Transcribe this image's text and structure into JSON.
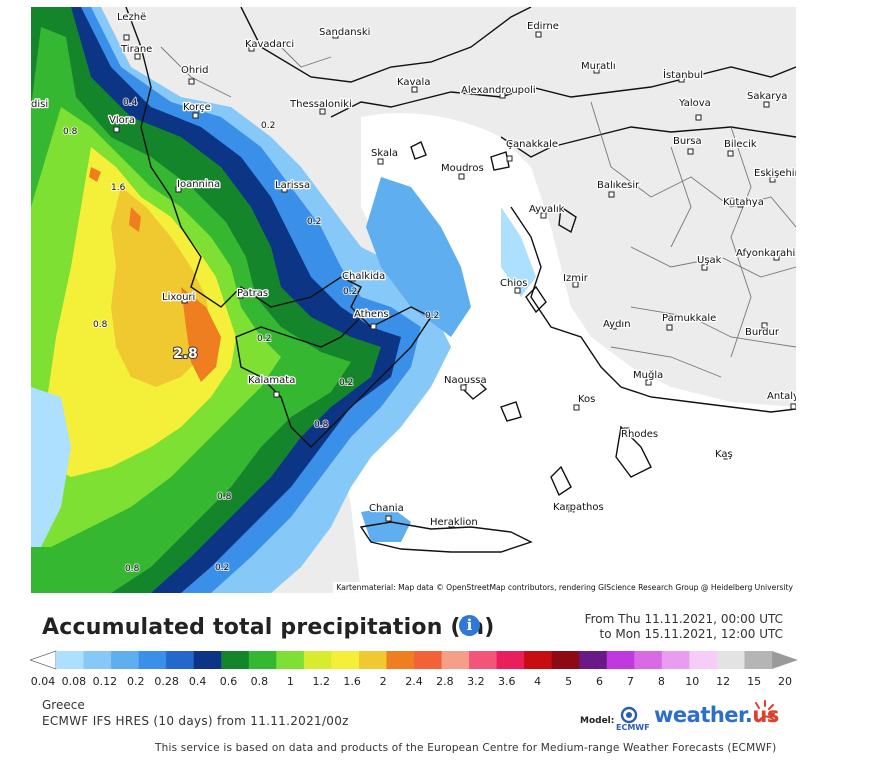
{
  "title": "Accumulated total precipitation (in)",
  "date_range": {
    "from": "From Thu 11.11.2021, 00:00 UTC",
    "to": "to Mon 15.11.2021, 12:00 UTC"
  },
  "map": {
    "attribution": "Kartenmaterial: Map data © OpenStreetMap contributors, rendering GIScience Research Group @ Heidelberg University",
    "peak_label": "2.8",
    "cities": [
      "Lezhë",
      "Tirane",
      "Ohrid",
      "Kavadarci",
      "Sandanski",
      "Edirne",
      "Muratlı",
      "İstanbul",
      "Kavala",
      "Alexandroupoli",
      "Vlora",
      "Korçe",
      "Thessaloniki",
      "Yalova",
      "Sakarya",
      "Bursa",
      "Bilecik",
      "Eskişehir",
      "Çanakkale",
      "Skala",
      "Moudros",
      "Ioannina",
      "Larissa",
      "Balıkesir",
      "Kütahya",
      "Ayvalık",
      "Chalkida",
      "Chios",
      "Izmir",
      "Uşak",
      "Afyonkarahisar",
      "Lixouri",
      "Patras",
      "Athens",
      "Aydın",
      "Pamukkale",
      "Burdur",
      "Kalamata",
      "Naoussa",
      "Muğla",
      "Kos",
      "Antalya",
      "Rhodes",
      "Kaş",
      "Chania",
      "Heraklion",
      "Karpathos",
      "disi"
    ],
    "contour_values": [
      "0.4",
      "0.8",
      "1.6",
      "0.2",
      "0.2",
      "0.2",
      "0.2",
      "0.2",
      "0.8",
      "0.8",
      "0.2",
      "0.8",
      "0.2",
      "0.8"
    ]
  },
  "legend": {
    "ticks": [
      "0.04",
      "0.08",
      "0.12",
      "0.2",
      "0.28",
      "0.4",
      "0.6",
      "0.8",
      "1",
      "1.2",
      "1.6",
      "2",
      "2.4",
      "2.8",
      "3.2",
      "3.6",
      "4",
      "5",
      "6",
      "7",
      "8",
      "10",
      "12",
      "15",
      "20"
    ],
    "colors": [
      "#ade0ff",
      "#86c8f7",
      "#5eaef0",
      "#3a8fe8",
      "#2468cc",
      "#0d3585",
      "#15852c",
      "#36b732",
      "#7de033",
      "#d7ec2f",
      "#f4f03a",
      "#f0c830",
      "#ef7e20",
      "#f26236",
      "#f79e88",
      "#f2547a",
      "#e91e5a",
      "#c70d12",
      "#8d0a14",
      "#6a1a86",
      "#c038e0",
      "#d86ae6",
      "#e99cf0",
      "#f5cdf7",
      "#e3e3e3",
      "#b5b5b5"
    ]
  },
  "region": "Greece",
  "model_line": "ECMWF IFS HRES (10 days) from 11.11.2021/00z",
  "model_label": "Model:",
  "logos": {
    "ecmwf": "ECMWF",
    "weatherus": "weather.",
    "weatherus_tld": "us"
  },
  "disclaimer": "This service is based on data and products of the European Centre for Medium-range Weather Forecasts (ECMWF)"
}
